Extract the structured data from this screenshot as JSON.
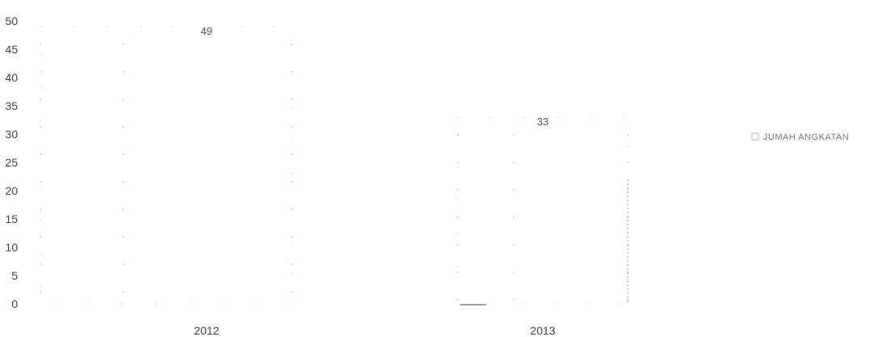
{
  "chart_data": {
    "type": "bar",
    "categories": [
      "2012",
      "2013"
    ],
    "series": [
      {
        "name": "JUMAH ANGKATAN",
        "values": [
          49,
          33
        ]
      }
    ],
    "title": "",
    "xlabel": "",
    "ylabel": "",
    "ylim": [
      0,
      50
    ],
    "yticks": [
      0,
      5,
      10,
      15,
      20,
      25,
      30,
      35,
      40,
      45,
      50
    ],
    "grid": false,
    "legend": "right",
    "colors": {
      "bar_fill": "#ffffff",
      "bar_dots": "#bbbbbb",
      "axis_text": "#444444",
      "legend_text": "#777777"
    }
  }
}
